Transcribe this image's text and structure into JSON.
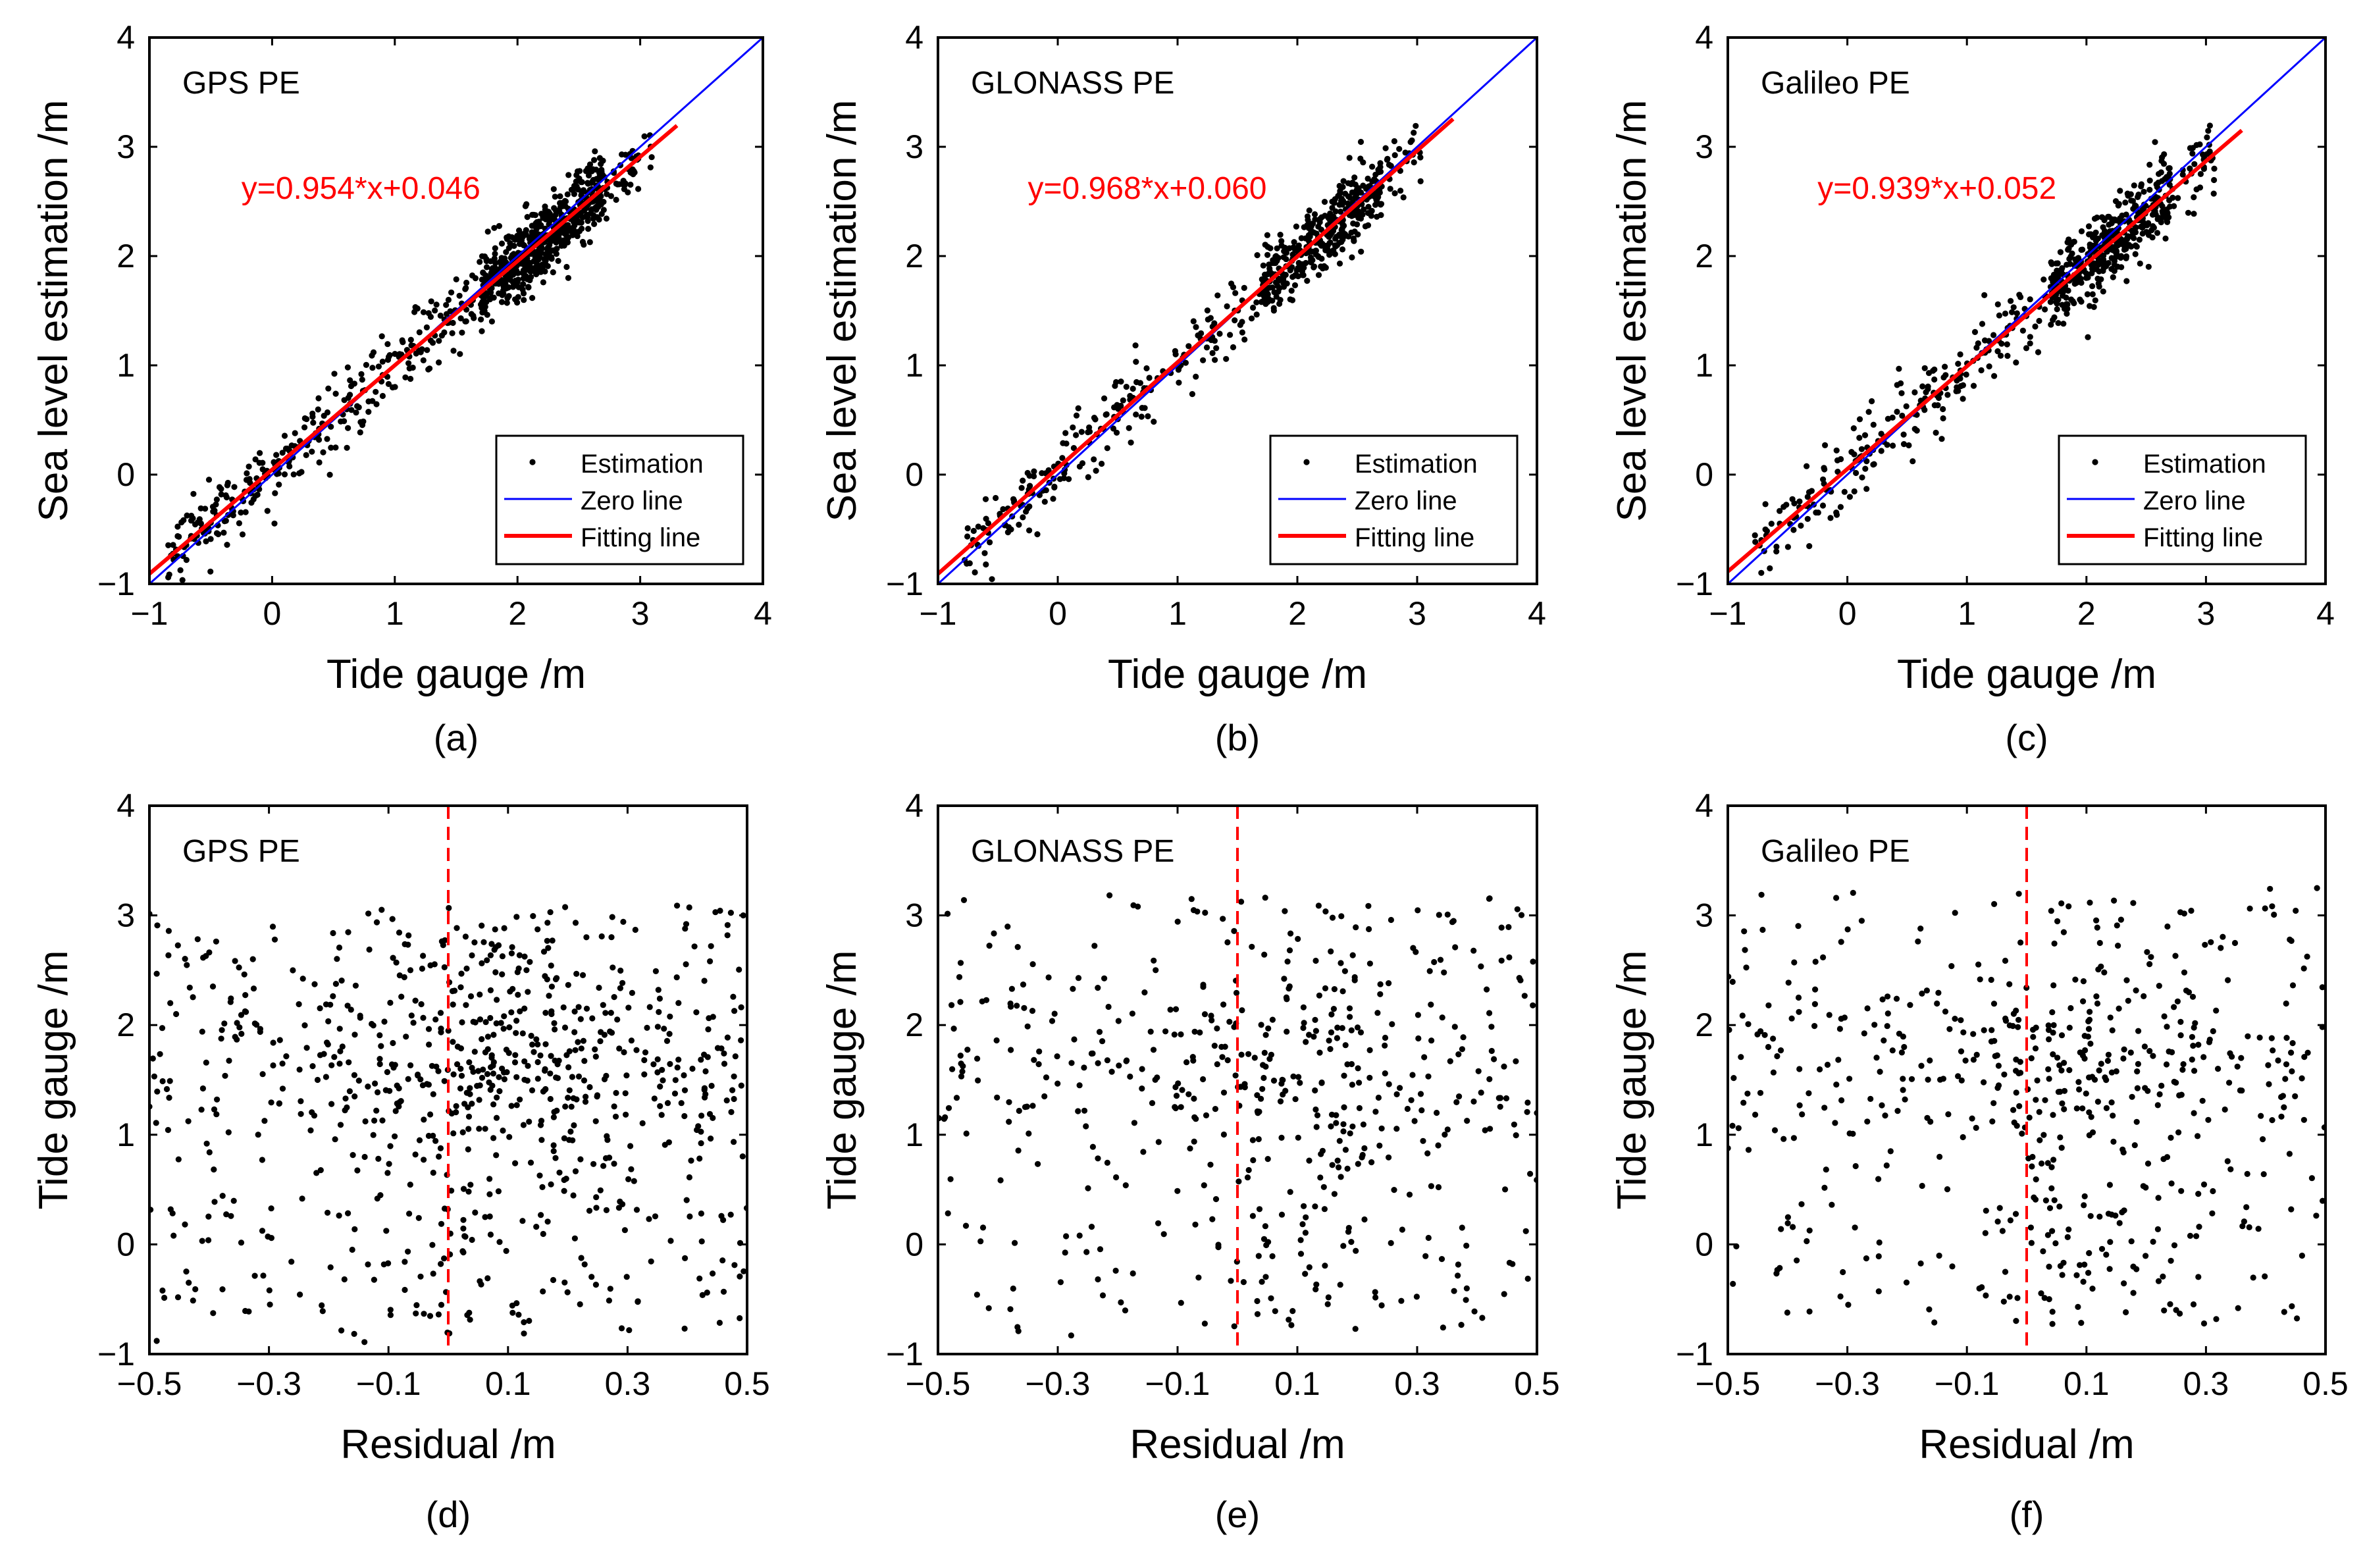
{
  "figure": {
    "colors": {
      "axis": "#000000",
      "points": "#000000",
      "zero_line": "#0000ff",
      "fit_line": "#ff0000",
      "fit_text": "#ff0000",
      "dashed_line": "#ff0000"
    }
  },
  "chart_data": [
    {
      "id": "a",
      "type": "scatter",
      "panel_label": "(a)",
      "title": "GPS PE",
      "xlabel": "Tide gauge /m",
      "ylabel": "Sea level estimation /m",
      "xlim": [
        -1,
        4
      ],
      "ylim": [
        -1,
        4
      ],
      "xticks": [
        -1,
        0,
        1,
        2,
        3,
        4
      ],
      "yticks": [
        -1,
        0,
        1,
        2,
        3,
        4
      ],
      "xtick_labels": [
        "−1",
        "0",
        "1",
        "2",
        "3",
        "4"
      ],
      "ytick_labels": [
        "−1",
        "0",
        "1",
        "2",
        "3",
        "4"
      ],
      "fit": {
        "slope": 0.954,
        "intercept": 0.046,
        "label": "y=0.954*x+0.046",
        "x_range": [
          -1.0,
          3.3
        ]
      },
      "zero_line": {
        "x_range": [
          -1,
          4
        ]
      },
      "legend": {
        "position": "bottom-right",
        "entries": [
          "Estimation",
          "Zero line",
          "Fitting line"
        ]
      },
      "points": {
        "count": 900,
        "seed": 101,
        "x_range": [
          -0.85,
          3.1
        ],
        "noise": 0.17,
        "description": "estimates vs tide gauge, dense band along fit line"
      }
    },
    {
      "id": "b",
      "type": "scatter",
      "panel_label": "(b)",
      "title": "GLONASS PE",
      "xlabel": "Tide gauge /m",
      "ylabel": "Sea level estimation /m",
      "xlim": [
        -1,
        4
      ],
      "ylim": [
        -1,
        4
      ],
      "xticks": [
        -1,
        0,
        1,
        2,
        3,
        4
      ],
      "yticks": [
        -1,
        0,
        1,
        2,
        3,
        4
      ],
      "xtick_labels": [
        "−1",
        "0",
        "1",
        "2",
        "3",
        "4"
      ],
      "ytick_labels": [
        "−1",
        "0",
        "1",
        "2",
        "3",
        "4"
      ],
      "fit": {
        "slope": 0.968,
        "intercept": 0.06,
        "label": "y=0.968*x+0.060",
        "x_range": [
          -1.0,
          3.3
        ]
      },
      "zero_line": {
        "x_range": [
          -1,
          4
        ]
      },
      "legend": {
        "position": "bottom-right",
        "entries": [
          "Estimation",
          "Zero line",
          "Fitting line"
        ]
      },
      "points": {
        "count": 600,
        "seed": 202,
        "x_range": [
          -0.8,
          3.05
        ],
        "noise": 0.16,
        "description": "estimates vs tide gauge"
      }
    },
    {
      "id": "c",
      "type": "scatter",
      "panel_label": "(c)",
      "title": "Galileo PE",
      "xlabel": "Tide gauge /m",
      "ylabel": "Sea level estimation /m",
      "xlim": [
        -1,
        4
      ],
      "ylim": [
        -1,
        4
      ],
      "xticks": [
        -1,
        0,
        1,
        2,
        3,
        4
      ],
      "yticks": [
        -1,
        0,
        1,
        2,
        3,
        4
      ],
      "xtick_labels": [
        "−1",
        "0",
        "1",
        "2",
        "3",
        "4"
      ],
      "ytick_labels": [
        "−1",
        "0",
        "1",
        "2",
        "3",
        "4"
      ],
      "fit": {
        "slope": 0.939,
        "intercept": 0.052,
        "label": "y=0.939*x+0.052",
        "x_range": [
          -1.0,
          3.3
        ]
      },
      "zero_line": {
        "x_range": [
          -1,
          4
        ]
      },
      "legend": {
        "position": "bottom-right",
        "entries": [
          "Estimation",
          "Zero line",
          "Fitting line"
        ]
      },
      "points": {
        "count": 650,
        "seed": 303,
        "x_range": [
          -0.8,
          3.1
        ],
        "noise": 0.17,
        "description": "estimates vs tide gauge"
      }
    },
    {
      "id": "d",
      "type": "scatter",
      "panel_label": "(d)",
      "title": "GPS PE",
      "xlabel": "Residual /m",
      "ylabel": "Tide gauge /m",
      "xlim": [
        -0.5,
        0.5
      ],
      "ylim": [
        -1,
        4
      ],
      "xticks": [
        -0.5,
        -0.3,
        -0.1,
        0.1,
        0.3,
        0.5
      ],
      "yticks": [
        -1,
        0,
        1,
        2,
        3,
        4
      ],
      "xtick_labels": [
        "−0.5",
        "−0.3",
        "−0.1",
        "0.1",
        "0.3",
        "0.5"
      ],
      "ytick_labels": [
        "−1",
        "0",
        "1",
        "2",
        "3",
        "4"
      ],
      "reference_line": {
        "x": 0,
        "style": "dashed"
      },
      "points": {
        "count": 800,
        "seed": 404,
        "x_range": [
          -0.5,
          0.5
        ],
        "y_range": [
          -0.9,
          3.1
        ],
        "description": "residuals vs tide gauge"
      }
    },
    {
      "id": "e",
      "type": "scatter",
      "panel_label": "(e)",
      "title": "GLONASS PE",
      "xlabel": "Residual /m",
      "ylabel": "Tide gauge /m",
      "xlim": [
        -0.5,
        0.5
      ],
      "ylim": [
        -1,
        4
      ],
      "xticks": [
        -0.5,
        -0.3,
        -0.1,
        0.1,
        0.3,
        0.5
      ],
      "yticks": [
        -1,
        0,
        1,
        2,
        3,
        4
      ],
      "xtick_labels": [
        "−0.5",
        "−0.3",
        "−0.1",
        "0.1",
        "0.3",
        "0.5"
      ],
      "ytick_labels": [
        "−1",
        "0",
        "1",
        "2",
        "3",
        "4"
      ],
      "reference_line": {
        "x": 0,
        "style": "dashed"
      },
      "points": {
        "count": 520,
        "seed": 505,
        "x_range": [
          -0.5,
          0.5
        ],
        "y_range": [
          -0.85,
          3.2
        ],
        "description": "residuals vs tide gauge"
      }
    },
    {
      "id": "f",
      "type": "scatter",
      "panel_label": "(f)",
      "title": "Galileo PE",
      "xlabel": "Residual /m",
      "ylabel": "Tide gauge /m",
      "xlim": [
        -0.5,
        0.5
      ],
      "ylim": [
        -1,
        4
      ],
      "xticks": [
        -0.5,
        -0.3,
        -0.1,
        0.1,
        0.3,
        0.5
      ],
      "yticks": [
        -1,
        0,
        1,
        2,
        3,
        4
      ],
      "xtick_labels": [
        "−0.5",
        "−0.3",
        "−0.1",
        "0.1",
        "0.3",
        "0.5"
      ],
      "ytick_labels": [
        "−1",
        "0",
        "1",
        "2",
        "3",
        "4"
      ],
      "reference_line": {
        "x": 0,
        "style": "dashed"
      },
      "points": {
        "count": 560,
        "seed": 606,
        "x_range": [
          -0.5,
          0.5
        ],
        "y_range": [
          -0.75,
          3.25
        ],
        "description": "residuals vs tide gauge"
      }
    }
  ]
}
